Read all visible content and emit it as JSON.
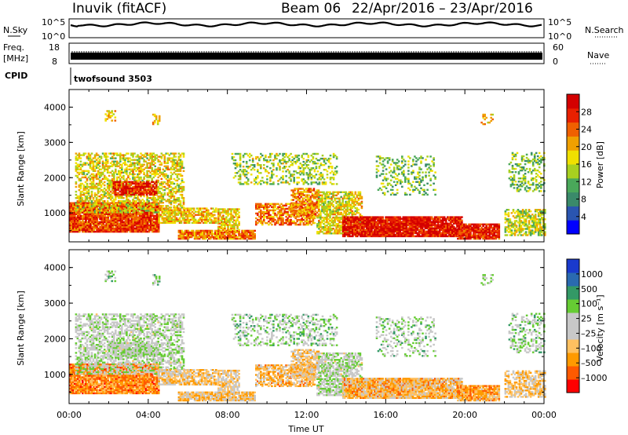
{
  "header": {
    "title": "Inuvik (fitACF)",
    "beam": "Beam 06",
    "date_range": "22/Apr/2016 – 23/Apr/2016"
  },
  "strips": {
    "nsky_label": "N.Sky",
    "nsky_ticks": [
      "10^5",
      "10^0"
    ],
    "nsearch_label": "N.Search",
    "nsearch_ticks": [
      "10^5",
      "10^0"
    ],
    "freq_label": "Freq.",
    "freq_unit": "[MHz]",
    "freq_ticks": [
      "18",
      "8"
    ],
    "nave_label": "Nave",
    "nave_ticks": [
      "60",
      "0"
    ],
    "cpid_label": "CPID",
    "cpid_value": "twofsound 3503"
  },
  "colors": {
    "power_scale": [
      "#0000ff",
      "#2a55b0",
      "#3a8a6a",
      "#4aa85a",
      "#a8d020",
      "#f0e000",
      "#f0a000",
      "#f06000",
      "#e82000",
      "#d40000"
    ],
    "velocity_scale": [
      "#ff0000",
      "#ff5a00",
      "#ff9a00",
      "#ffc060",
      "#c8c8c8",
      "#c8c8c8",
      "#66cc33",
      "#339966",
      "#2a6ab0",
      "#1a3acc"
    ]
  },
  "chart_data": [
    {
      "type": "heatmap",
      "quantity": "power",
      "ylabel": "Slant Range [km]",
      "xlabel": "",
      "yticks": [
        1000,
        2000,
        3000,
        4000
      ],
      "ylim": [
        180,
        4500
      ],
      "xticks": [
        "00:00",
        "04:00",
        "08:00",
        "12:00",
        "16:00",
        "20:00",
        "00:00"
      ],
      "xlim_hours": [
        0,
        24
      ],
      "colorbar": {
        "label": "Power [dB]",
        "ticks": [
          "4",
          "8",
          "12",
          "16",
          "20",
          "24",
          "28"
        ],
        "range": [
          0,
          30
        ]
      }
    },
    {
      "type": "heatmap",
      "quantity": "velocity",
      "ylabel": "Slant Range [km]",
      "xlabel": "Time UT",
      "yticks": [
        1000,
        2000,
        3000,
        4000
      ],
      "ylim": [
        180,
        4500
      ],
      "xticks": [
        "00:00",
        "04:00",
        "08:00",
        "12:00",
        "16:00",
        "20:00",
        "00:00"
      ],
      "xlim_hours": [
        0,
        24
      ],
      "colorbar": {
        "label": "Velocity [m s⁻¹]",
        "ticks": [
          "1000",
          "500",
          "100",
          "25",
          "–25",
          "–100",
          "–500",
          "–1000"
        ]
      }
    }
  ]
}
